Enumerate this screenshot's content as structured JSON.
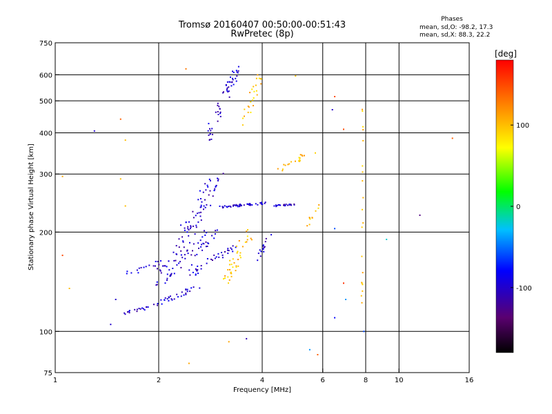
{
  "chart_data": {
    "type": "scatter",
    "title": "Tromsø 20160407 00:50:00-00:51:43",
    "subtitle": "RwPretec (8p)",
    "xlabel": "Frequency [MHz]",
    "ylabel": "Stationary phase Virtual Height [km]",
    "xscale": "log",
    "yscale": "log",
    "xlim": [
      1,
      16
    ],
    "ylim": [
      75,
      750
    ],
    "x_ticks": [
      1,
      2,
      4,
      6,
      8,
      10,
      16
    ],
    "x_tick_labels": [
      "1",
      "2",
      "4",
      "6",
      "8",
      "10",
      "16"
    ],
    "x_grid": [
      2,
      4,
      6,
      8,
      10
    ],
    "y_ticks": [
      75,
      100,
      200,
      300,
      400,
      500,
      600,
      750
    ],
    "y_tick_labels": [
      "75",
      "100",
      "200",
      "300",
      "400",
      "500",
      "600",
      "750"
    ],
    "y_grid": [
      100,
      200,
      300,
      400,
      500,
      600
    ],
    "grid": true,
    "stats": {
      "heading": "Phases",
      "line_o": "mean, sd,O: -98.2, 17.3",
      "line_x": "mean, sd,X:  88.3, 22.2"
    },
    "colorbar": {
      "label": "[deg]",
      "range": [
        -180,
        180
      ],
      "ticks": [
        100,
        0,
        -100
      ],
      "tick_labels": [
        "100",
        "0",
        "-100"
      ],
      "colormap": [
        "#000000",
        "#5a0070",
        "#0000ff",
        "#00c0ff",
        "#00ff00",
        "#ffff00",
        "#ff8000",
        "#ff0000"
      ]
    },
    "series": [
      {
        "label_ref": "O-mode",
        "color_phase": -100,
        "segments": [
          {
            "f0": 1.55,
            "f1": 1.95,
            "h0": 112,
            "h1": 120,
            "n": 18,
            "spread": 0.03
          },
          {
            "f0": 1.95,
            "f1": 2.7,
            "h0": 120,
            "h1": 140,
            "n": 30,
            "spread": 0.04
          },
          {
            "f0": 1.6,
            "f1": 2.3,
            "h0": 150,
            "h1": 165,
            "n": 25,
            "spread": 0.06
          },
          {
            "f0": 2.0,
            "f1": 2.9,
            "h0": 140,
            "h1": 200,
            "n": 60,
            "spread": 0.1
          },
          {
            "f0": 2.3,
            "f1": 2.95,
            "h0": 180,
            "h1": 290,
            "n": 70,
            "spread": 0.1
          },
          {
            "f0": 2.5,
            "f1": 3.3,
            "h0": 150,
            "h1": 180,
            "n": 35,
            "spread": 0.05
          },
          {
            "f0": 3.0,
            "f1": 4.1,
            "h0": 238,
            "h1": 245,
            "n": 45,
            "spread": 0.015
          },
          {
            "f0": 4.3,
            "f1": 5.0,
            "h0": 240,
            "h1": 243,
            "n": 22,
            "spread": 0.01
          },
          {
            "f0": 2.75,
            "f1": 3.4,
            "h0": 380,
            "h1": 630,
            "n": 55,
            "spread": 0.05
          },
          {
            "f0": 3.85,
            "f1": 4.2,
            "h0": 160,
            "h1": 195,
            "n": 15,
            "spread": 0.04
          }
        ]
      },
      {
        "label_ref": "X-mode",
        "color_phase": 100,
        "segments": [
          {
            "f0": 3.1,
            "f1": 3.7,
            "h0": 140,
            "h1": 200,
            "n": 40,
            "spread": 0.07
          },
          {
            "f0": 3.5,
            "f1": 3.95,
            "h0": 420,
            "h1": 600,
            "n": 25,
            "spread": 0.05
          },
          {
            "f0": 4.5,
            "f1": 5.7,
            "h0": 310,
            "h1": 355,
            "n": 20,
            "spread": 0.04
          },
          {
            "f0": 5.4,
            "f1": 5.8,
            "h0": 210,
            "h1": 240,
            "n": 10,
            "spread": 0.04
          },
          {
            "f0": 7.8,
            "f1": 7.85,
            "h0": 110,
            "h1": 480,
            "n": 20,
            "spread": 0.01
          }
        ]
      }
    ],
    "isolated_points": [
      {
        "x": 1.3,
        "y": 405,
        "phase": -100
      },
      {
        "x": 1.45,
        "y": 105,
        "phase": -100
      },
      {
        "x": 1.5,
        "y": 125,
        "phase": -100
      },
      {
        "x": 2.4,
        "y": 625,
        "phase": 130
      },
      {
        "x": 2.45,
        "y": 80,
        "phase": 110
      },
      {
        "x": 3.2,
        "y": 93,
        "phase": 110
      },
      {
        "x": 3.6,
        "y": 95,
        "phase": -110
      },
      {
        "x": 5.0,
        "y": 595,
        "phase": 100
      },
      {
        "x": 5.5,
        "y": 88,
        "phase": -40
      },
      {
        "x": 5.8,
        "y": 85,
        "phase": 140
      },
      {
        "x": 6.5,
        "y": 515,
        "phase": 150
      },
      {
        "x": 6.4,
        "y": 470,
        "phase": -100
      },
      {
        "x": 6.5,
        "y": 205,
        "phase": -60
      },
      {
        "x": 6.5,
        "y": 110,
        "phase": -80
      },
      {
        "x": 6.9,
        "y": 410,
        "phase": 150
      },
      {
        "x": 6.9,
        "y": 140,
        "phase": 160
      },
      {
        "x": 7.0,
        "y": 125,
        "phase": -40
      },
      {
        "x": 7.9,
        "y": 100,
        "phase": -60
      },
      {
        "x": 9.2,
        "y": 190,
        "phase": -20
      },
      {
        "x": 11.5,
        "y": 225,
        "phase": -130
      },
      {
        "x": 14.3,
        "y": 385,
        "phase": 140
      },
      {
        "x": 1.05,
        "y": 295,
        "phase": 110
      },
      {
        "x": 1.05,
        "y": 170,
        "phase": 150
      },
      {
        "x": 1.1,
        "y": 135,
        "phase": 100
      },
      {
        "x": 1.55,
        "y": 290,
        "phase": 100
      },
      {
        "x": 1.6,
        "y": 380,
        "phase": 100
      },
      {
        "x": 1.6,
        "y": 240,
        "phase": 100
      },
      {
        "x": 1.55,
        "y": 440,
        "phase": 140
      }
    ]
  }
}
